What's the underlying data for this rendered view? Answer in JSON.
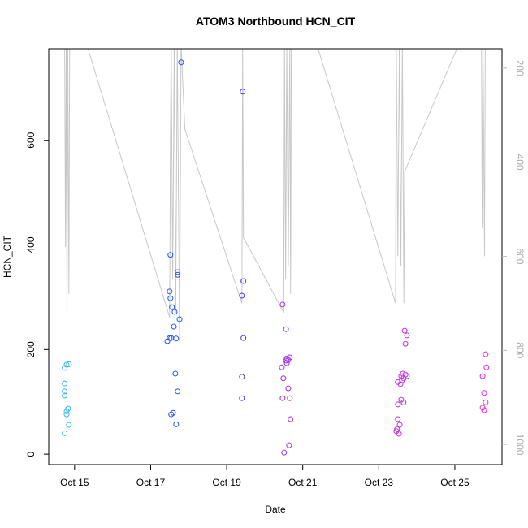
{
  "chart_data": {
    "type": "scatter",
    "title": "ATOM3 Northbound HCN_CIT",
    "x_label": "Date",
    "y_label": "HCN_CIT",
    "xlim": [
      14.32,
      26.24
    ],
    "ylim": [
      -20,
      775
    ],
    "y2lim": [
      1043,
      159
    ],
    "xticks": [
      {
        "value": 15,
        "label": "Oct 15"
      },
      {
        "value": 17,
        "label": "Oct 17"
      },
      {
        "value": 19,
        "label": "Oct 19"
      },
      {
        "value": 21,
        "label": "Oct 21"
      },
      {
        "value": 23,
        "label": "Oct 23"
      },
      {
        "value": 25,
        "label": "Oct 25"
      }
    ],
    "yticks": [
      0,
      200,
      400,
      600
    ],
    "y2ticks": [
      200,
      400,
      600,
      800,
      1000
    ],
    "series": [
      {
        "color": "#c8c8c8",
        "axis": "y2",
        "line": true,
        "x": [
          14.74,
          14.76,
          14.78,
          14.8,
          14.82,
          14.85,
          14.87,
          15.32,
          17.5,
          17.52,
          17.54,
          17.58,
          17.62,
          17.66,
          17.7,
          17.74,
          17.76,
          17.8,
          17.9,
          19.4,
          19.42,
          19.44,
          20.5,
          20.52,
          20.55,
          20.58,
          20.62,
          20.66,
          20.68,
          20.7,
          21.37,
          23.44,
          23.46,
          23.5,
          23.54,
          23.58,
          23.62,
          23.66,
          23.68,
          25.1,
          25.7,
          25.72,
          25.74,
          25.78,
          25.8
        ],
        "values": [
          150,
          580,
          150,
          740,
          150,
          680,
          150,
          150,
          730,
          360,
          150,
          650,
          150,
          720,
          150,
          560,
          780,
          150,
          330,
          700,
          150,
          560,
          720,
          150,
          650,
          150,
          620,
          150,
          680,
          150,
          150,
          700,
          150,
          600,
          150,
          620,
          150,
          700,
          420,
          150,
          150,
          540,
          150,
          600,
          150
        ]
      },
      {
        "color": "#33b5ee",
        "x": [
          14.79,
          14.85,
          14.74,
          14.74,
          14.74,
          14.74,
          14.79,
          14.79,
          14.83,
          14.85,
          14.74
        ],
        "values": [
          171,
          172,
          165,
          135,
          120,
          112,
          82,
          76,
          87,
          56,
          40
        ]
      },
      {
        "color": "#2255ee",
        "x": [
          17.8,
          17.52,
          17.71,
          17.71,
          17.5,
          17.52,
          17.56,
          17.63,
          17.76,
          17.61,
          17.44,
          17.5,
          17.54,
          17.67,
          17.65,
          17.71,
          17.59,
          17.54,
          17.67
        ],
        "values": [
          749,
          381,
          348,
          343,
          311,
          298,
          281,
          272,
          258,
          244,
          216,
          222,
          222,
          221,
          154,
          120,
          79,
          76,
          57
        ]
      },
      {
        "color": "#4a3af0",
        "x": [
          19.42,
          19.44,
          19.4,
          19.44,
          19.4,
          19.4
        ],
        "values": [
          693,
          331,
          303,
          222,
          148,
          107
        ]
      },
      {
        "color": "#9b30e0",
        "x": [
          20.47,
          20.56,
          20.58,
          20.62,
          20.66,
          20.56,
          20.58,
          20.45,
          20.49,
          20.62,
          20.66,
          20.47,
          20.68,
          20.64,
          20.51
        ],
        "values": [
          286,
          239,
          183,
          180,
          185,
          179,
          174,
          166,
          145,
          126,
          107,
          107,
          67,
          17,
          3
        ]
      },
      {
        "color": "#c030e0",
        "x": [
          23.68,
          23.74,
          23.7,
          23.63,
          23.7,
          23.59,
          23.74,
          23.65,
          23.61,
          23.5,
          23.57,
          23.59,
          23.65,
          23.5,
          23.5,
          23.55,
          23.48,
          23.46,
          23.53
        ],
        "values": [
          236,
          227,
          211,
          154,
          152,
          149,
          149,
          145,
          141,
          138,
          134,
          104,
          99,
          95,
          67,
          56,
          48,
          44,
          39
        ]
      },
      {
        "color": "#ee22dd",
        "x": [
          25.81,
          25.83,
          25.73,
          25.77,
          25.81,
          25.73,
          25.77
        ],
        "values": [
          191,
          166,
          149,
          117,
          99,
          89,
          84
        ]
      }
    ]
  }
}
